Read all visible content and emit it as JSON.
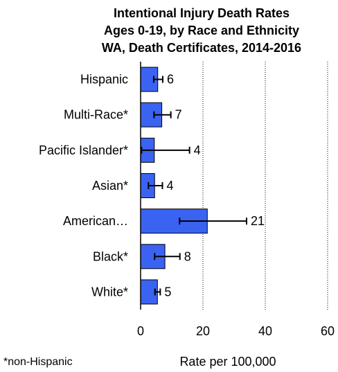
{
  "chart_data": {
    "type": "bar",
    "orientation": "horizontal",
    "title": [
      "Intentional Injury Death Rates",
      "Ages 0-19, by Race and Ethnicity",
      "WA, Death Certificates, 2014-2016"
    ],
    "categories": [
      "Hispanic",
      "Multi-Race*",
      "Pacific Islander*",
      "Asian*",
      "American…",
      "Black*",
      "White*"
    ],
    "values": [
      5.5,
      6.8,
      4.4,
      4.5,
      21.4,
      7.8,
      5.4
    ],
    "data_labels": [
      "6",
      "7",
      "4",
      "4",
      "21",
      "8",
      "5"
    ],
    "error_low": [
      4.2,
      4.3,
      0.3,
      2.5,
      12.5,
      4.5,
      4.6
    ],
    "error_high": [
      7.1,
      9.7,
      15.7,
      7.0,
      34.0,
      12.6,
      6.3
    ],
    "xlim": [
      0,
      60
    ],
    "xticks": [
      0,
      20,
      40,
      60
    ],
    "xtick_labels": [
      "0",
      "20",
      "40",
      "60"
    ],
    "xlabel": "Rate per 100,000",
    "footnote": "*non-Hispanic",
    "grid": "vertical dotted",
    "bar_color": "#3b63f2",
    "bar_edge_color": "#000000"
  }
}
